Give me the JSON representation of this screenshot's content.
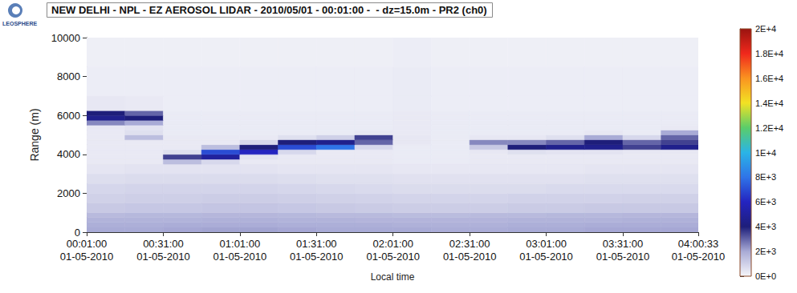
{
  "chart_data": {
    "type": "heatmap",
    "title": "NEW DELHI - NPL - EZ AEROSOL LIDAR - 2010/05/01 - 00:01:00 -  - dz=15.0m - PR2 (ch0)",
    "logo": "LEOSPHERE",
    "x_label": "Local time",
    "y_label": "Range (m)",
    "xlim": [
      "2010-05-01T00:01:00",
      "2010-05-01T04:00:33"
    ],
    "xticks": [
      {
        "value": "2010-05-01T00:01:00",
        "label": "00:01:00\n01-05-2010"
      },
      {
        "value": "2010-05-01T00:31:00",
        "label": "00:31:00\n01-05-2010"
      },
      {
        "value": "2010-05-01T01:01:00",
        "label": "01:01:00\n01-05-2010"
      },
      {
        "value": "2010-05-01T01:31:00",
        "label": "01:31:00\n01-05-2010"
      },
      {
        "value": "2010-05-01T02:01:00",
        "label": "02:01:00\n01-05-2010"
      },
      {
        "value": "2010-05-01T02:31:00",
        "label": "02:31:00\n01-05-2010"
      },
      {
        "value": "2010-05-01T03:01:00",
        "label": "03:01:00\n01-05-2010"
      },
      {
        "value": "2010-05-01T03:31:00",
        "label": "03:31:00\n01-05-2010"
      },
      {
        "value": "2010-05-01T04:00:33",
        "label": "04:00:33\n01-05-2010"
      }
    ],
    "ylim": [
      0,
      10000
    ],
    "yticks": [
      0,
      2000,
      4000,
      6000,
      8000,
      10000
    ],
    "grid": false,
    "x_edges": [
      "2010-05-01T00:01:00",
      "2010-05-01T00:16:00",
      "2010-05-01T00:31:00",
      "2010-05-01T00:46:00",
      "2010-05-01T01:01:00",
      "2010-05-01T01:16:00",
      "2010-05-01T01:31:00",
      "2010-05-01T01:46:00",
      "2010-05-01T02:01:00",
      "2010-05-01T02:16:00",
      "2010-05-01T02:31:00",
      "2010-05-01T02:46:00",
      "2010-05-01T03:01:00",
      "2010-05-01T03:16:00",
      "2010-05-01T03:31:00",
      "2010-05-01T03:46:00",
      "2010-05-01T04:00:33"
    ],
    "y_edges": [
      0,
      250,
      500,
      750,
      1000,
      1500,
      2000,
      2500,
      3000,
      3500,
      3750,
      4000,
      4250,
      4500,
      4750,
      5000,
      5250,
      5500,
      5750,
      6000,
      6250,
      7000,
      8500,
      10000
    ],
    "cells": [
      [
        2000,
        2000,
        2050,
        2100,
        2100,
        2050,
        2000,
        2000,
        2000,
        1950,
        1950,
        2000,
        2000,
        2050,
        2050,
        2050
      ],
      [
        1900,
        1900,
        1950,
        1950,
        1950,
        1900,
        1900,
        1900,
        1850,
        1850,
        1850,
        1900,
        1900,
        1950,
        1950,
        1950
      ],
      [
        1800,
        1800,
        1800,
        1850,
        1850,
        1800,
        1800,
        1750,
        1750,
        1750,
        1750,
        1800,
        1800,
        1800,
        1850,
        1850
      ],
      [
        1600,
        1650,
        1650,
        1700,
        1700,
        1650,
        1600,
        1600,
        1550,
        1550,
        1600,
        1600,
        1650,
        1650,
        1700,
        1700
      ],
      [
        1200,
        1250,
        1250,
        1300,
        1300,
        1250,
        1200,
        1150,
        1100,
        1100,
        1100,
        1150,
        1150,
        1200,
        1200,
        1200
      ],
      [
        1000,
        1050,
        1050,
        1100,
        1100,
        1050,
        1000,
        950,
        900,
        900,
        900,
        950,
        950,
        950,
        1000,
        1000
      ],
      [
        850,
        900,
        900,
        900,
        900,
        850,
        800,
        750,
        700,
        700,
        700,
        700,
        750,
        750,
        750,
        750
      ],
      [
        650,
        700,
        700,
        700,
        700,
        650,
        600,
        600,
        550,
        550,
        550,
        550,
        550,
        600,
        600,
        600
      ],
      [
        450,
        500,
        500,
        500,
        500,
        450,
        450,
        450,
        400,
        400,
        400,
        400,
        400,
        450,
        450,
        450
      ],
      [
        350,
        350,
        1500,
        800,
        350,
        350,
        350,
        350,
        300,
        300,
        350,
        350,
        350,
        350,
        350,
        350
      ],
      [
        350,
        350,
        3500,
        5000,
        500,
        350,
        350,
        350,
        300,
        300,
        350,
        350,
        350,
        350,
        350,
        350
      ],
      [
        350,
        350,
        600,
        7000,
        6000,
        800,
        350,
        350,
        300,
        300,
        400,
        600,
        500,
        500,
        400,
        400
      ],
      [
        350,
        350,
        350,
        1500,
        4000,
        7000,
        8000,
        800,
        300,
        300,
        1200,
        4000,
        4500,
        4500,
        3500,
        4500
      ],
      [
        350,
        350,
        350,
        350,
        800,
        4000,
        4500,
        3000,
        400,
        300,
        2500,
        2500,
        3000,
        4000,
        3000,
        3500
      ],
      [
        350,
        1500,
        350,
        350,
        350,
        600,
        1000,
        3500,
        400,
        300,
        400,
        400,
        600,
        2000,
        800,
        3000
      ],
      [
        350,
        600,
        300,
        300,
        300,
        300,
        300,
        400,
        350,
        300,
        300,
        300,
        300,
        400,
        300,
        2000
      ],
      [
        400,
        500,
        300,
        300,
        300,
        300,
        300,
        300,
        350,
        300,
        300,
        300,
        300,
        300,
        300,
        350
      ],
      [
        2500,
        2000,
        300,
        300,
        300,
        300,
        300,
        300,
        350,
        300,
        300,
        300,
        300,
        300,
        300,
        300
      ],
      [
        4500,
        4000,
        300,
        300,
        300,
        300,
        300,
        300,
        350,
        300,
        300,
        300,
        300,
        300,
        300,
        300
      ],
      [
        4000,
        3000,
        300,
        300,
        300,
        300,
        300,
        300,
        350,
        300,
        300,
        300,
        300,
        300,
        300,
        300
      ],
      [
        400,
        350,
        250,
        250,
        250,
        250,
        250,
        250,
        300,
        250,
        250,
        250,
        250,
        250,
        250,
        250
      ],
      [
        250,
        250,
        250,
        250,
        250,
        250,
        250,
        250,
        300,
        250,
        250,
        250,
        250,
        250,
        250,
        250
      ],
      [
        200,
        200,
        200,
        200,
        200,
        200,
        200,
        200,
        250,
        200,
        200,
        200,
        200,
        200,
        200,
        200
      ]
    ],
    "colorbar": {
      "lim": [
        0,
        20000
      ],
      "ticks": [
        {
          "value": 20000,
          "label": "2E+4"
        },
        {
          "value": 18000,
          "label": "1.8E+4"
        },
        {
          "value": 16000,
          "label": "1.6E+4"
        },
        {
          "value": 14000,
          "label": "1.4E+4"
        },
        {
          "value": 12000,
          "label": "1.2E+4"
        },
        {
          "value": 10000,
          "label": "1E+4"
        },
        {
          "value": 8000,
          "label": "8E+3"
        },
        {
          "value": 6000,
          "label": "6E+3"
        },
        {
          "value": 4000,
          "label": "4E+3"
        },
        {
          "value": 2000,
          "label": "2E+3"
        },
        {
          "value": 0,
          "label": "0E+0"
        }
      ]
    }
  }
}
